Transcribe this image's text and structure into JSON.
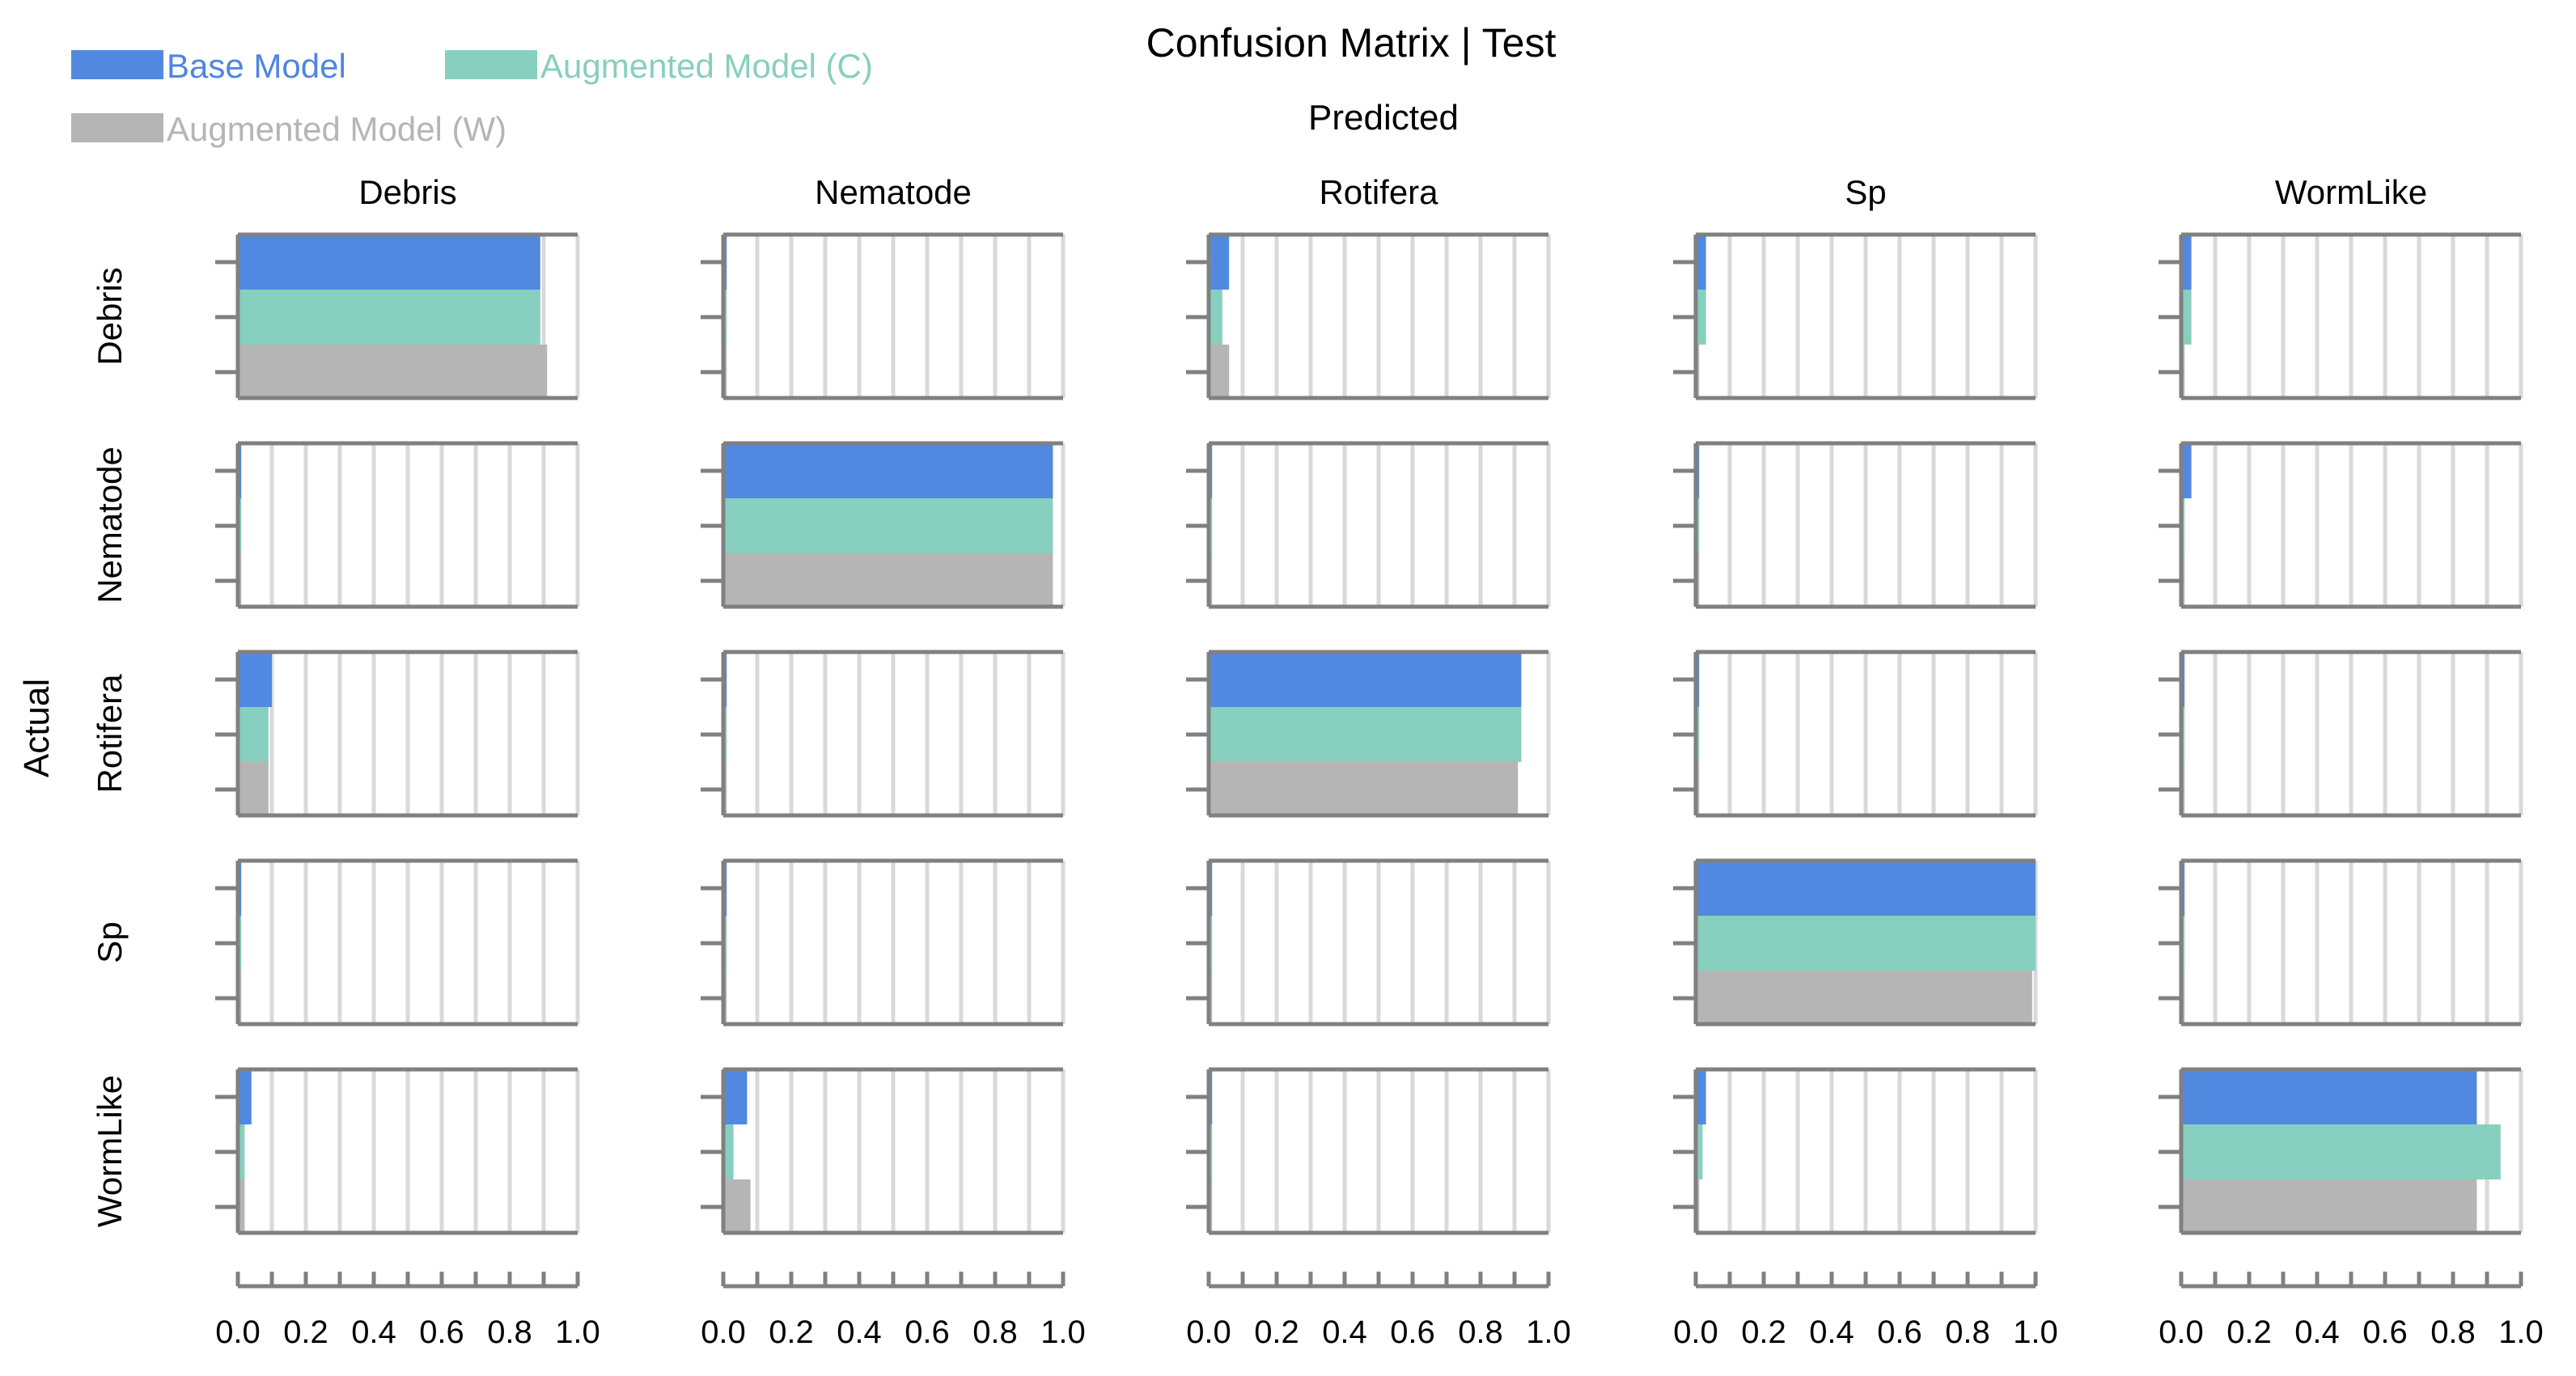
{
  "chart_data": {
    "type": "bar",
    "orientation": "horizontal",
    "title": "Confusion Matrix | Test",
    "col_axis_label": "Predicted",
    "row_axis_label": "Actual",
    "classes": [
      "Debris",
      "Nematode",
      "Rotifera",
      "Sp",
      "WormLike"
    ],
    "xlim": [
      0,
      1
    ],
    "x_ticks": [
      "0.0",
      "0.2",
      "0.4",
      "0.6",
      "0.8",
      "1.0"
    ],
    "gridlines": true,
    "legend_position": "top-left",
    "series": [
      {
        "name": "Base Model",
        "color": "#5289e0",
        "values": [
          [
            0.89,
            0.01,
            0.06,
            0.03,
            0.03
          ],
          [
            0.01,
            0.97,
            0.01,
            0.01,
            0.03
          ],
          [
            0.1,
            0.01,
            0.92,
            0.01,
            0.01
          ],
          [
            0.01,
            0.01,
            0.01,
            1.0,
            0.01
          ],
          [
            0.04,
            0.07,
            0.01,
            0.03,
            0.87
          ]
        ]
      },
      {
        "name": "Augmented Model (C)",
        "color": "#87cfbe",
        "values": [
          [
            0.89,
            0.01,
            0.04,
            0.03,
            0.03
          ],
          [
            0.01,
            0.97,
            0.01,
            0.01,
            0.01
          ],
          [
            0.09,
            0.01,
            0.92,
            0.01,
            0.01
          ],
          [
            0.01,
            0.01,
            0.01,
            1.0,
            0.01
          ],
          [
            0.02,
            0.03,
            0.01,
            0.02,
            0.94
          ]
        ]
      },
      {
        "name": "Augmented Model (W)",
        "color": "#b5b5b5",
        "values": [
          [
            0.91,
            0.01,
            0.06,
            0.01,
            0.01
          ],
          [
            0.01,
            0.97,
            0.01,
            0.01,
            0.01
          ],
          [
            0.09,
            0.01,
            0.91,
            0.01,
            0.01
          ],
          [
            0.01,
            0.01,
            0.01,
            0.99,
            0.01
          ],
          [
            0.02,
            0.08,
            0.01,
            0.01,
            0.87
          ]
        ]
      }
    ]
  }
}
